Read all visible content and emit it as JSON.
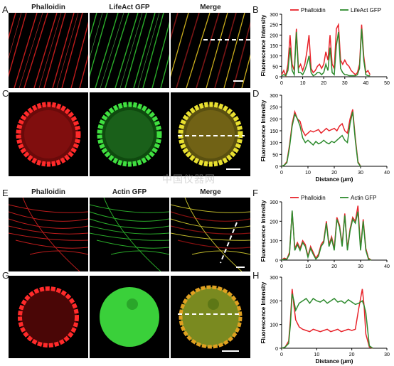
{
  "panel_letters": {
    "A": "A",
    "B": "B",
    "C": "C",
    "D": "D",
    "E": "E",
    "F": "F",
    "G": "G",
    "H": "H"
  },
  "row1_titles": [
    "Phalloidin",
    "LifeAct GFP",
    "Merge"
  ],
  "row2_titles": [
    "Phalloidin",
    "Actin GFP",
    "Merge"
  ],
  "watermark": "中国仪器网",
  "colors": {
    "red": "#e8232a",
    "green": "#2d8a2d"
  },
  "chart_data": [
    {
      "type": "line",
      "legend": [
        "Phalloidin",
        "LifeAct GFP"
      ],
      "ylabel": "Fluorescence Intensity",
      "xlabel": "",
      "xlim": [
        0,
        50
      ],
      "ylim": [
        0,
        300
      ],
      "xticks": [
        0,
        10,
        20,
        30,
        40,
        50
      ],
      "yticks": [
        0,
        50,
        100,
        150,
        200,
        250,
        300
      ],
      "series": [
        {
          "name": "Phalloidin",
          "color": "#e8232a",
          "x": [
            0,
            1,
            2,
            3,
            4,
            5,
            6,
            7,
            8,
            9,
            10,
            11,
            12,
            13,
            14,
            15,
            16,
            17,
            18,
            19,
            20,
            21,
            22,
            23,
            24,
            25,
            26,
            27,
            28,
            29,
            30,
            31,
            32,
            33,
            34,
            35,
            36,
            37,
            38,
            39,
            40,
            41,
            42
          ],
          "values": [
            10,
            30,
            5,
            60,
            200,
            60,
            30,
            230,
            40,
            60,
            30,
            60,
            120,
            200,
            40,
            20,
            30,
            50,
            60,
            40,
            60,
            120,
            80,
            200,
            60,
            40,
            230,
            250,
            80,
            60,
            80,
            60,
            50,
            30,
            20,
            10,
            20,
            60,
            250,
            100,
            20,
            30,
            10
          ]
        },
        {
          "name": "LifeAct GFP",
          "color": "#2d8a2d",
          "x": [
            0,
            1,
            2,
            3,
            4,
            5,
            6,
            7,
            8,
            9,
            10,
            11,
            12,
            13,
            14,
            15,
            16,
            17,
            18,
            19,
            20,
            21,
            22,
            23,
            24,
            25,
            26,
            27,
            28,
            29,
            30,
            31,
            32,
            33,
            34,
            35,
            36,
            37,
            38,
            39,
            40,
            41,
            42
          ],
          "values": [
            5,
            10,
            5,
            30,
            140,
            30,
            10,
            215,
            20,
            20,
            10,
            30,
            60,
            100,
            20,
            5,
            10,
            20,
            20,
            10,
            20,
            60,
            30,
            140,
            20,
            10,
            150,
            215,
            40,
            20,
            10,
            10,
            5,
            5,
            5,
            5,
            10,
            40,
            230,
            80,
            10,
            5,
            5
          ]
        }
      ]
    },
    {
      "type": "line",
      "legend": [],
      "ylabel": "Fluorescence Intensity",
      "xlabel": "Distance (μm)",
      "xlim": [
        0,
        40
      ],
      "ylim": [
        0,
        300
      ],
      "xticks": [
        0,
        10,
        20,
        30,
        40
      ],
      "yticks": [
        0,
        50,
        100,
        150,
        200,
        250,
        300
      ],
      "series": [
        {
          "name": "Phalloidin",
          "color": "#e8232a",
          "x": [
            0,
            1,
            2,
            3,
            4,
            5,
            6,
            7,
            8,
            9,
            10,
            11,
            12,
            13,
            14,
            15,
            16,
            17,
            18,
            19,
            20,
            21,
            22,
            23,
            24,
            25,
            26,
            27,
            28,
            29,
            30
          ],
          "values": [
            0,
            5,
            20,
            90,
            180,
            230,
            200,
            190,
            150,
            130,
            140,
            150,
            145,
            150,
            155,
            140,
            150,
            160,
            150,
            155,
            160,
            150,
            170,
            180,
            150,
            140,
            200,
            240,
            120,
            20,
            0
          ]
        },
        {
          "name": "Actin GFP",
          "color": "#2d8a2d",
          "x": [
            0,
            1,
            2,
            3,
            4,
            5,
            6,
            7,
            8,
            9,
            10,
            11,
            12,
            13,
            14,
            15,
            16,
            17,
            18,
            19,
            20,
            21,
            22,
            23,
            24,
            25,
            26,
            27,
            28,
            29,
            30
          ],
          "values": [
            0,
            5,
            15,
            80,
            170,
            220,
            200,
            170,
            120,
            100,
            110,
            100,
            90,
            105,
            95,
            100,
            110,
            100,
            95,
            105,
            100,
            110,
            120,
            130,
            110,
            100,
            180,
            230,
            110,
            15,
            0
          ]
        }
      ]
    },
    {
      "type": "line",
      "legend": [
        "Phalloidin",
        "Actin GFP"
      ],
      "ylabel": "Fluorescence Intensity",
      "xlabel": "",
      "xlim": [
        0,
        40
      ],
      "ylim": [
        0,
        300
      ],
      "xticks": [
        0,
        10,
        20,
        30,
        40
      ],
      "yticks": [
        0,
        100,
        200,
        300
      ],
      "series": [
        {
          "name": "Phalloidin",
          "color": "#e8232a",
          "x": [
            0,
            1,
            2,
            3,
            4,
            5,
            6,
            7,
            8,
            9,
            10,
            11,
            12,
            13,
            14,
            15,
            16,
            17,
            18,
            19,
            20,
            21,
            22,
            23,
            24,
            25,
            26,
            27,
            28,
            29,
            30,
            31,
            32,
            33,
            34
          ],
          "values": [
            0,
            10,
            5,
            40,
            250,
            60,
            90,
            60,
            100,
            80,
            20,
            70,
            40,
            10,
            30,
            80,
            100,
            200,
            80,
            120,
            60,
            220,
            180,
            80,
            240,
            60,
            160,
            220,
            200,
            280,
            60,
            210,
            60,
            10,
            0
          ]
        },
        {
          "name": "Actin GFP",
          "color": "#2d8a2d",
          "x": [
            0,
            1,
            2,
            3,
            4,
            5,
            6,
            7,
            8,
            9,
            10,
            11,
            12,
            13,
            14,
            15,
            16,
            17,
            18,
            19,
            20,
            21,
            22,
            23,
            24,
            25,
            26,
            27,
            28,
            29,
            30,
            31,
            32,
            33,
            34
          ],
          "values": [
            0,
            5,
            5,
            30,
            255,
            50,
            80,
            50,
            90,
            70,
            15,
            60,
            30,
            5,
            20,
            70,
            90,
            190,
            70,
            110,
            50,
            210,
            170,
            70,
            230,
            50,
            150,
            210,
            190,
            250,
            50,
            200,
            50,
            5,
            0
          ]
        }
      ]
    },
    {
      "type": "line",
      "legend": [],
      "ylabel": "Fluorescence Intensity",
      "xlabel": "Distance (μm)",
      "xlim": [
        0,
        30
      ],
      "ylim": [
        0,
        300
      ],
      "xticks": [
        0,
        10,
        20,
        30
      ],
      "yticks": [
        0,
        100,
        200,
        300
      ],
      "series": [
        {
          "name": "Phalloidin",
          "color": "#e8232a",
          "x": [
            0,
            1,
            2,
            2.5,
            3,
            3.5,
            4,
            5,
            6,
            7,
            8,
            9,
            10,
            11,
            12,
            13,
            14,
            15,
            16,
            17,
            18,
            19,
            20,
            21,
            22,
            23,
            23.5,
            24,
            25,
            26
          ],
          "values": [
            0,
            5,
            30,
            120,
            250,
            180,
            120,
            90,
            80,
            75,
            70,
            80,
            75,
            70,
            75,
            80,
            70,
            75,
            80,
            70,
            75,
            80,
            75,
            80,
            170,
            250,
            180,
            60,
            5,
            0
          ]
        },
        {
          "name": "Actin GFP",
          "color": "#2d8a2d",
          "x": [
            0,
            1,
            2,
            2.5,
            3,
            3.5,
            4,
            5,
            6,
            7,
            8,
            9,
            10,
            11,
            12,
            13,
            14,
            15,
            16,
            17,
            18,
            19,
            20,
            21,
            22,
            23,
            23.5,
            24,
            25,
            26
          ],
          "values": [
            0,
            5,
            20,
            100,
            230,
            200,
            160,
            190,
            200,
            210,
            190,
            210,
            200,
            195,
            205,
            190,
            200,
            210,
            195,
            200,
            190,
            205,
            195,
            185,
            190,
            200,
            180,
            150,
            10,
            0
          ]
        }
      ]
    }
  ]
}
